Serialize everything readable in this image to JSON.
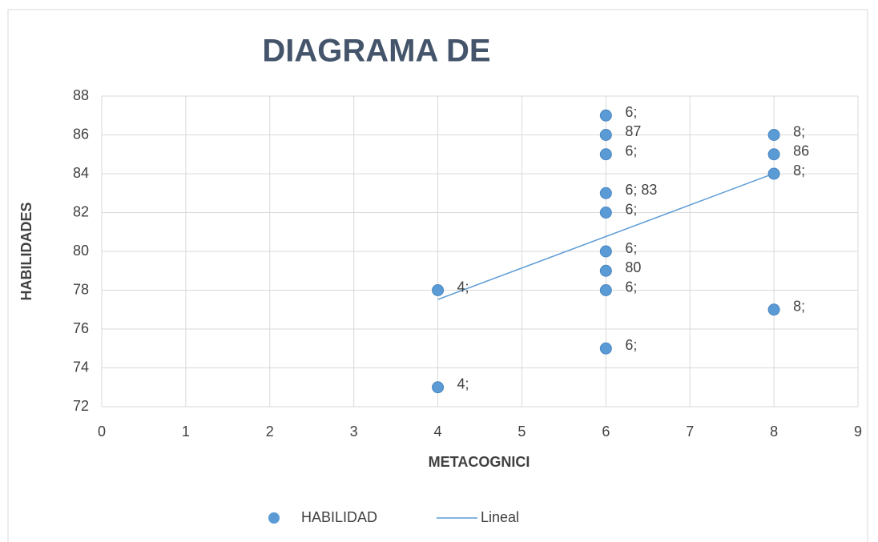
{
  "chart_data": {
    "type": "scatter",
    "title": "DIAGRAMA DE",
    "x_label": "METACOGNICI",
    "y_label": "HABILIDADES",
    "series": [
      {
        "name": "HABILIDAD",
        "color": "#5b9bd5",
        "x": [
          6,
          6,
          6,
          6,
          6,
          6,
          6,
          6,
          6,
          8,
          8,
          8,
          8,
          4,
          4
        ],
        "values": [
          87,
          86,
          85,
          83,
          82,
          80,
          79,
          78,
          75,
          86,
          85,
          84,
          77,
          78,
          73
        ],
        "value_labels": [
          [
            "6;",
            "87"
          ],
          null,
          [
            "6;"
          ],
          [
            "6; 83"
          ],
          [
            "6;"
          ],
          [
            "6;",
            "80"
          ],
          null,
          [
            "6;"
          ],
          [
            "6;"
          ],
          [
            "8;",
            "86"
          ],
          null,
          [
            "8;"
          ],
          [
            "8;"
          ],
          [
            "4;"
          ],
          [
            "4;"
          ]
        ]
      }
    ],
    "trendline": {
      "name": "Lineal",
      "type": "linear",
      "color": "#5b9bd5"
    },
    "xlim": [
      0,
      9
    ],
    "xticks": [
      0,
      1,
      2,
      3,
      4,
      5,
      6,
      7,
      8,
      9
    ],
    "ylim": [
      72,
      88
    ],
    "yticks": [
      72,
      74,
      76,
      78,
      80,
      82,
      84,
      86,
      88
    ],
    "grid": true,
    "legend": "bottom"
  }
}
